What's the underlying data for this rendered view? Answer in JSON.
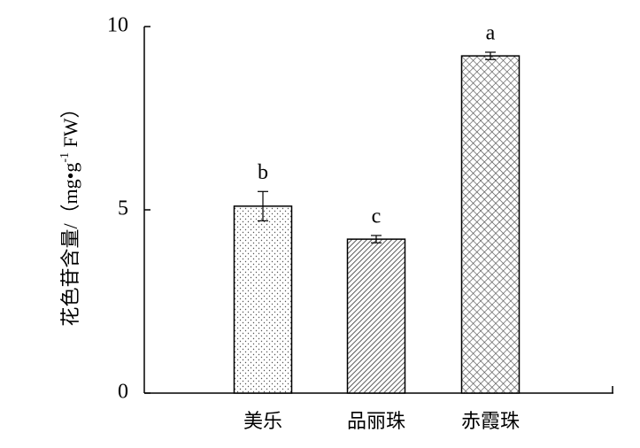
{
  "chart_data": {
    "type": "bar",
    "ylabel": [
      "花色苷含量/（mg•g",
      "-1",
      " FW）"
    ],
    "categories": [
      "美乐",
      "品丽珠",
      "赤霞珠"
    ],
    "values": [
      5.1,
      4.2,
      9.2
    ],
    "errors": [
      0.4,
      0.1,
      0.1
    ],
    "letters": [
      "b",
      "c",
      "a"
    ],
    "ylim": [
      0,
      10
    ],
    "yticks": [
      0,
      5,
      10
    ],
    "grid": false
  }
}
